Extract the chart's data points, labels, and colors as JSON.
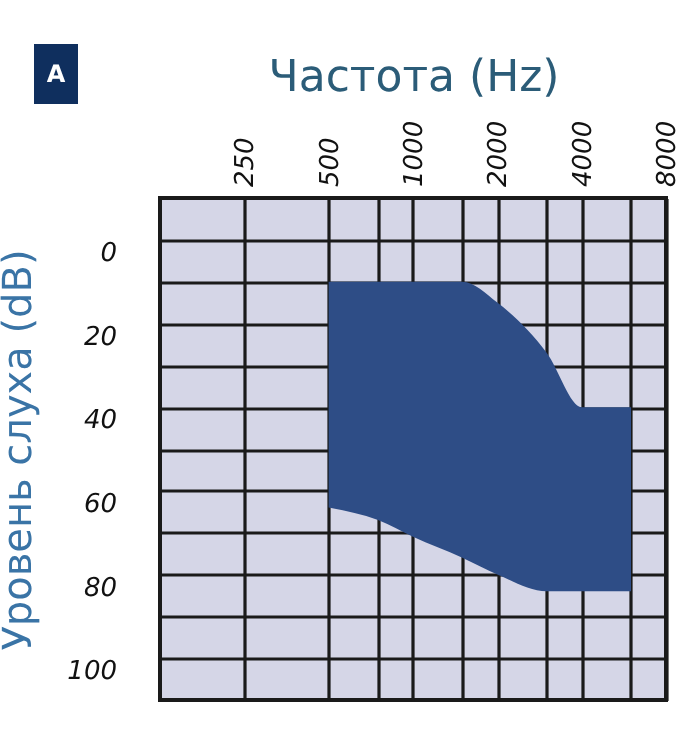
{
  "chart_data": {
    "type": "area",
    "xlabel": "Частота (Hz)",
    "ylabel": "Уровень слуха (dB)",
    "annotations": [
      "A"
    ],
    "log": "x",
    "xlim": [
      125,
      8000
    ],
    "xticks": [
      250,
      500,
      {
        "value": 750,
        "label": null
      },
      1000,
      {
        "value": 1500,
        "label": null
      },
      2000,
      {
        "value": 3000,
        "label": null
      },
      4000,
      {
        "value": 6000,
        "label": null
      },
      8000
    ],
    "ylim": [
      110,
      -10
    ],
    "yticks": [
      0,
      {
        "value": 10,
        "label": null
      },
      20,
      {
        "value": 30,
        "label": null
      },
      40,
      {
        "value": 50,
        "label": null
      },
      60,
      {
        "value": 70,
        "label": null
      },
      80,
      {
        "value": 90,
        "label": null
      },
      100
    ],
    "grid": true,
    "series": [
      {
        "color": "#2e4d86",
        "x": [
          500,
          750,
          1000,
          1500,
          2000,
          3000,
          4000,
          6000
        ],
        "values": [
          null,
          null,
          null,
          null,
          null,
          null,
          null,
          null
        ],
        "lower": [
          10,
          10,
          10,
          10,
          15,
          27,
          40,
          40
        ],
        "upper": [
          64,
          67,
          71,
          76,
          80,
          84,
          84,
          84
        ]
      }
    ]
  }
}
